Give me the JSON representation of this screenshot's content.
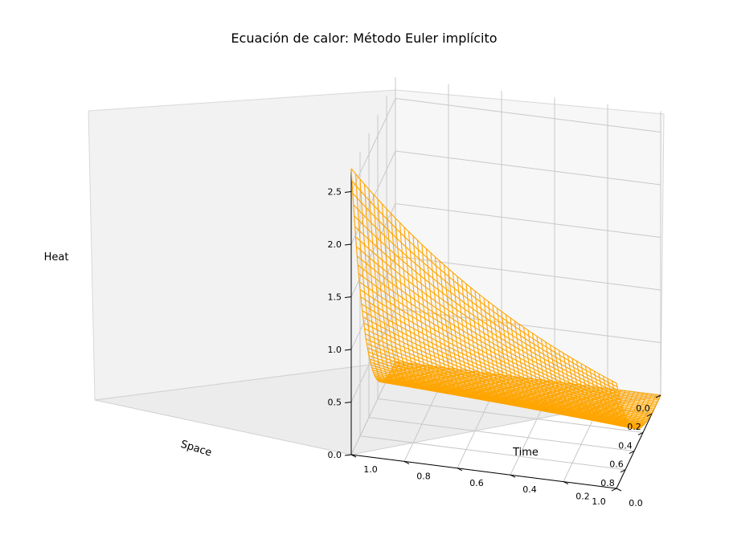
{
  "chart_data": {
    "type": "wireframe-3d",
    "title": "Ecuación de calor: Método Euler implícito",
    "xlabel": "Space",
    "ylabel": "Time",
    "zlabel": "Heat",
    "x_ticks": [
      "0.0",
      "0.2",
      "0.4",
      "0.6",
      "0.8",
      "1.0"
    ],
    "y_ticks": [
      "0.0",
      "0.2",
      "0.4",
      "0.6",
      "0.8",
      "1.0"
    ],
    "z_ticks": [
      "0.0",
      "0.5",
      "1.0",
      "1.5",
      "2.0",
      "2.5"
    ],
    "xlim": [
      0,
      1
    ],
    "ylim": [
      0,
      1
    ],
    "zlim": [
      0,
      2.7
    ],
    "surface": {
      "description_of_values": "u(x,t) = exp(t) * x^3",
      "x_samples": 60,
      "t_samples": 60,
      "max_value": 2.72
    },
    "color": "#ffa500",
    "grid": true
  }
}
